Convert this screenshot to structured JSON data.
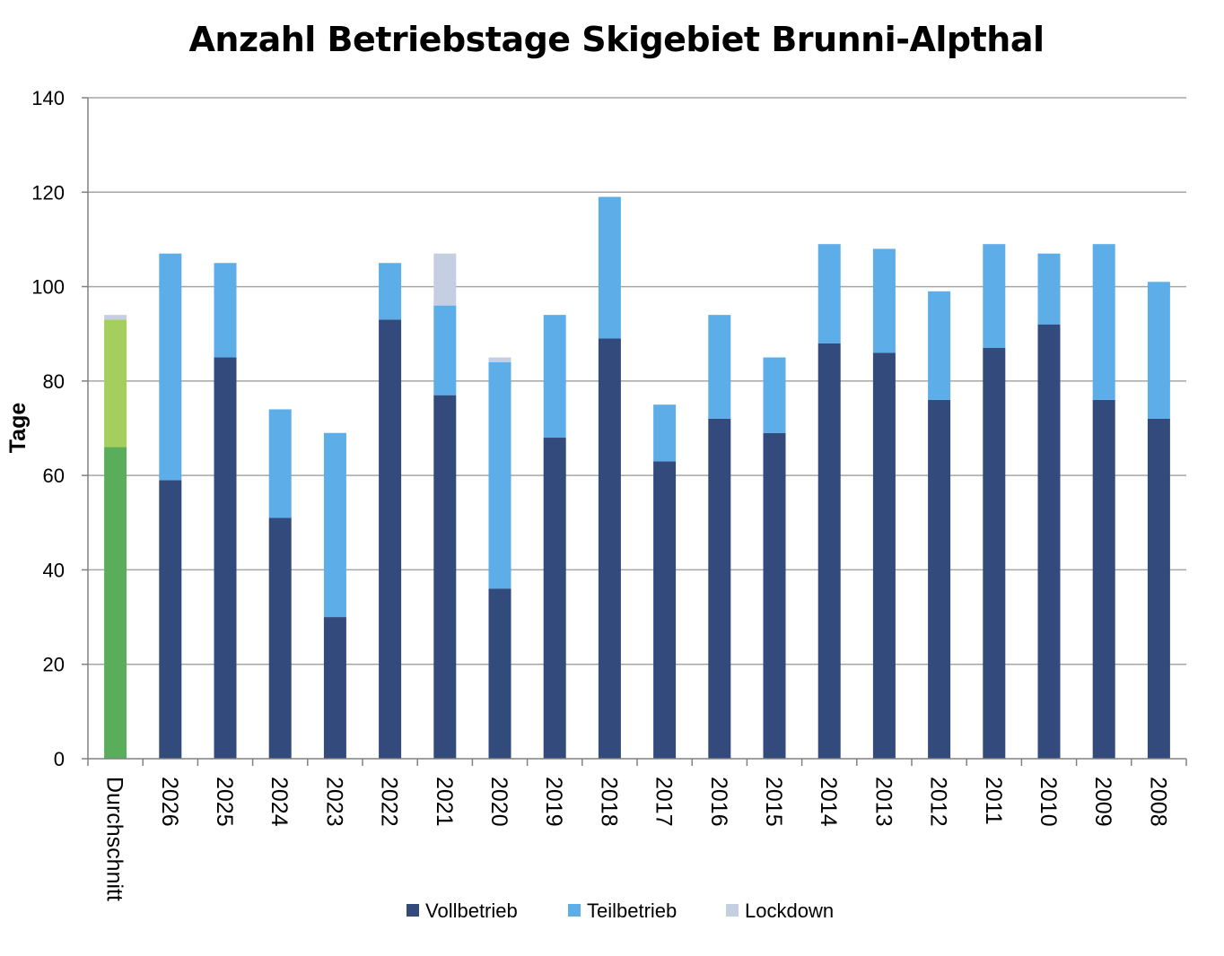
{
  "chart_data": {
    "type": "bar",
    "stacked": true,
    "title": "Anzahl Betriebstage Skigebiet Brunni-Alpthal",
    "ylabel": "Tage",
    "xlabel": "",
    "ylim": [
      0,
      140
    ],
    "yticks": [
      0,
      20,
      40,
      60,
      80,
      100,
      120,
      140
    ],
    "grid": true,
    "legend_position": "bottom",
    "categories": [
      "Durchschnitt",
      "2026",
      "2025",
      "2024",
      "2023",
      "2022",
      "2021",
      "2020",
      "2019",
      "2018",
      "2017",
      "2016",
      "2015",
      "2014",
      "2013",
      "2012",
      "2011",
      "2010",
      "2009",
      "2008"
    ],
    "series": [
      {
        "name": "Vollbetrieb",
        "color": "#324a7c",
        "values": [
          66,
          59,
          85,
          51,
          30,
          93,
          77,
          36,
          68,
          89,
          63,
          72,
          69,
          88,
          86,
          76,
          87,
          92,
          76,
          72
        ]
      },
      {
        "name": "Teilbetrieb",
        "color": "#5dade8",
        "values": [
          27,
          48,
          20,
          23,
          39,
          12,
          19,
          48,
          26,
          30,
          12,
          22,
          16,
          21,
          22,
          23,
          22,
          15,
          33,
          29
        ]
      },
      {
        "name": "Lockdown",
        "color": "#c5cfe2",
        "values": [
          1,
          0,
          0,
          0,
          0,
          0,
          11,
          1,
          0,
          0,
          0,
          0,
          0,
          0,
          0,
          0,
          0,
          0,
          0,
          0
        ]
      }
    ],
    "highlight": {
      "category": "Durchschnitt",
      "colors": [
        "#5aad5a",
        "#a4cf5e",
        "#c5cfe2"
      ]
    }
  }
}
